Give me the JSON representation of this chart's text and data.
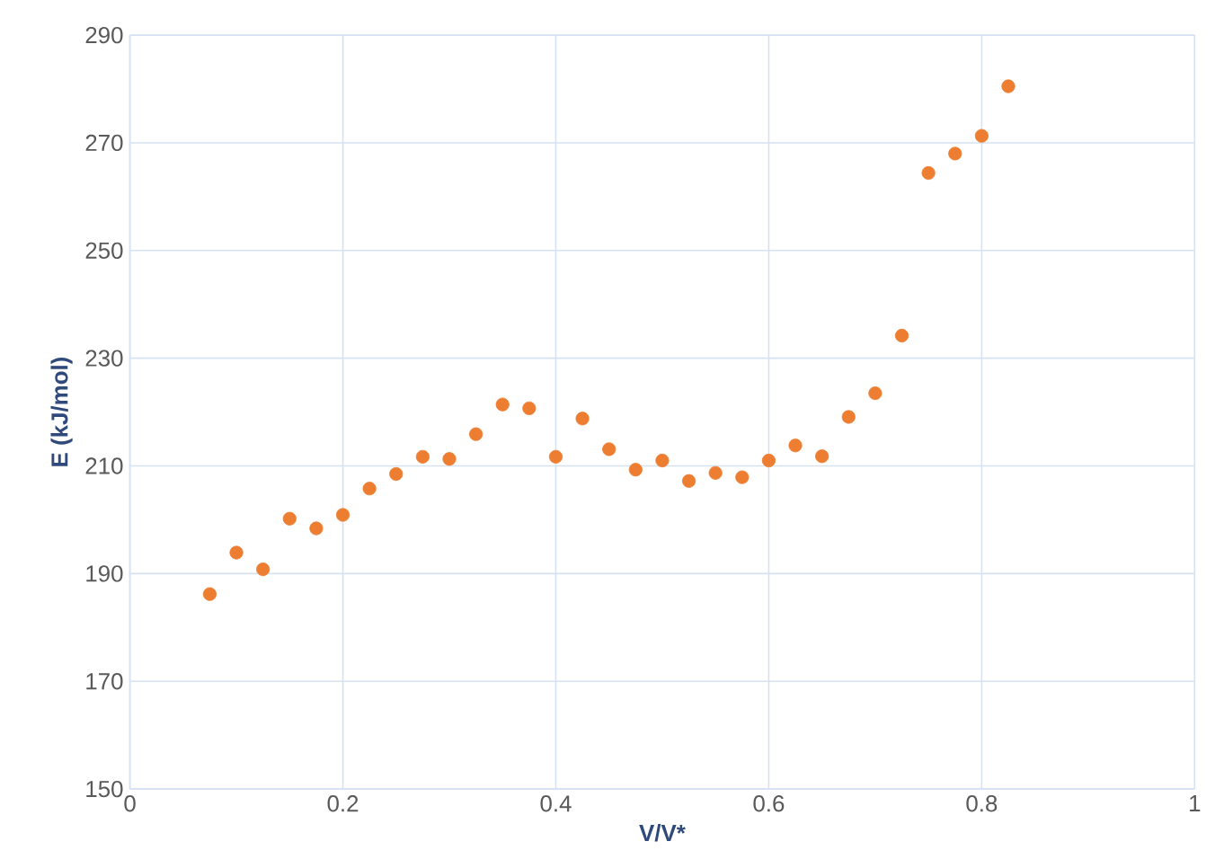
{
  "chart_data": {
    "type": "scatter",
    "xlabel": "V/V*",
    "ylabel": "E (kJ/mol)",
    "x": [
      0.075,
      0.1,
      0.125,
      0.15,
      0.175,
      0.2,
      0.225,
      0.25,
      0.275,
      0.3,
      0.325,
      0.35,
      0.375,
      0.4,
      0.425,
      0.45,
      0.475,
      0.5,
      0.525,
      0.55,
      0.575,
      0.6,
      0.625,
      0.65,
      0.675,
      0.7,
      0.725,
      0.75,
      0.775,
      0.8,
      0.825
    ],
    "values": [
      186.2,
      193.9,
      190.8,
      200.2,
      198.4,
      200.9,
      205.8,
      208.5,
      211.7,
      211.3,
      215.9,
      221.4,
      220.7,
      211.7,
      218.8,
      213.1,
      209.3,
      211.0,
      207.2,
      208.7,
      207.9,
      211.0,
      213.8,
      211.8,
      219.1,
      223.5,
      234.2,
      264.4,
      268.0,
      271.3,
      280.5
    ],
    "color": "#ed7d31",
    "marker": "circle",
    "grid": true,
    "xlim": [
      0,
      1
    ],
    "xticks": [
      0,
      0.2,
      0.4,
      0.6,
      0.8,
      1
    ],
    "ylim": [
      150,
      290
    ],
    "yticks": [
      150,
      170,
      190,
      210,
      230,
      250,
      270,
      290
    ]
  }
}
